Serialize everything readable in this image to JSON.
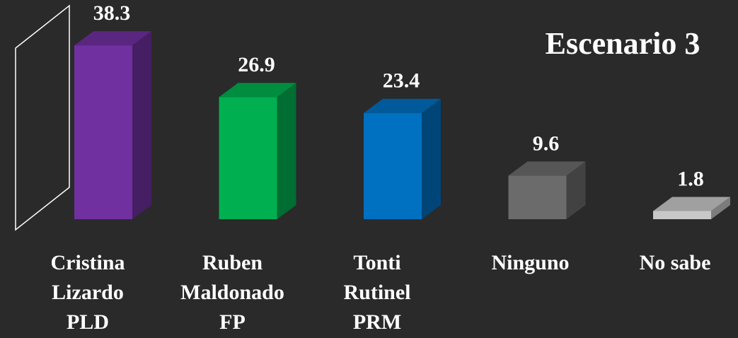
{
  "chart_data": {
    "type": "bar3d",
    "title": "Escenario 3",
    "categories": [
      [
        "Cristina",
        "Lizardo",
        "PLD"
      ],
      [
        "Ruben",
        "Maldonado",
        "FP"
      ],
      [
        "Tonti",
        "Rutinel",
        "PRM"
      ],
      [
        "Ninguno"
      ],
      [
        "No sabe"
      ]
    ],
    "values": [
      38.3,
      26.9,
      23.4,
      9.6,
      1.8
    ],
    "colors": [
      "#7030a0",
      "#00b050",
      "#0070c0",
      "#6b6b6b",
      "#c8c8c8"
    ]
  }
}
